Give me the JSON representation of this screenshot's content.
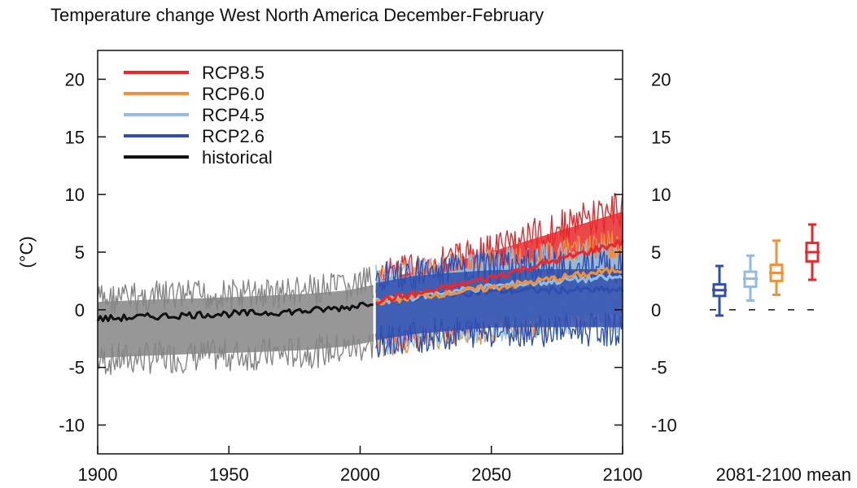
{
  "chart_data": {
    "type": "line",
    "title": "Temperature change West North America December-February",
    "xlabel": "",
    "ylabel": "(°C)",
    "xlim": [
      1900,
      2100
    ],
    "ylim": [
      -12.5,
      22.5
    ],
    "x_ticks": [
      1900,
      1950,
      2000,
      2050,
      2100
    ],
    "y_ticks": [
      -10,
      -5,
      0,
      5,
      10,
      15,
      20
    ],
    "grid": false,
    "legend_position": "top-left",
    "series": [
      {
        "name": "RCP8.5",
        "color": "#e8282b",
        "years": [
          2006,
          2020,
          2035,
          2050,
          2065,
          2080,
          2100
        ],
        "mean": [
          0.8,
          1.3,
          2.0,
          2.8,
          3.7,
          4.6,
          5.9
        ],
        "spread_low": [
          -4.0,
          -3.4,
          -2.7,
          -2.0,
          -1.2,
          -0.3,
          1.0
        ],
        "spread_high": [
          4.2,
          4.9,
          5.8,
          6.8,
          7.9,
          9.0,
          10.4
        ]
      },
      {
        "name": "RCP6.0",
        "color": "#f0923c",
        "years": [
          2006,
          2020,
          2035,
          2050,
          2065,
          2080,
          2100
        ],
        "mean": [
          0.7,
          1.1,
          1.5,
          1.9,
          2.4,
          2.9,
          3.5
        ],
        "spread_low": [
          -4.2,
          -3.7,
          -3.3,
          -2.9,
          -2.5,
          -2.1,
          -1.6
        ],
        "spread_high": [
          4.0,
          4.4,
          4.9,
          5.3,
          5.8,
          6.3,
          7.0
        ]
      },
      {
        "name": "RCP4.5",
        "color": "#8fbde4",
        "years": [
          2006,
          2020,
          2035,
          2050,
          2065,
          2080,
          2100
        ],
        "mean": [
          0.7,
          1.1,
          1.6,
          2.0,
          2.3,
          2.6,
          2.8
        ],
        "spread_low": [
          -4.1,
          -3.6,
          -3.2,
          -2.8,
          -2.5,
          -2.2,
          -2.0
        ],
        "spread_high": [
          4.1,
          4.6,
          5.0,
          5.4,
          5.7,
          6.0,
          6.2
        ]
      },
      {
        "name": "RCP2.6",
        "color": "#2f4fb0",
        "years": [
          2006,
          2020,
          2035,
          2050,
          2065,
          2080,
          2100
        ],
        "mean": [
          0.7,
          1.1,
          1.4,
          1.6,
          1.7,
          1.7,
          1.7
        ],
        "spread_low": [
          -4.3,
          -3.8,
          -3.5,
          -3.2,
          -3.2,
          -3.2,
          -3.2
        ],
        "spread_high": [
          4.0,
          4.6,
          4.9,
          5.1,
          5.2,
          5.2,
          5.2
        ]
      },
      {
        "name": "historical",
        "color": "#111111",
        "spread_color": "#858585",
        "years": [
          1900,
          1920,
          1940,
          1960,
          1980,
          1995,
          2005
        ],
        "mean": [
          -0.8,
          -0.6,
          -0.4,
          -0.3,
          -0.1,
          0.2,
          0.7
        ],
        "spread_low": [
          -5.8,
          -5.6,
          -5.4,
          -5.3,
          -5.1,
          -4.8,
          -4.4
        ],
        "spread_high": [
          2.3,
          2.5,
          2.6,
          2.8,
          3.0,
          3.3,
          3.8
        ]
      }
    ],
    "boxplots": {
      "label": "2081-2100 mean",
      "items": [
        {
          "name": "RCP2.6",
          "color": "#2f4fb0",
          "whisker_low": -0.5,
          "q1": 1.2,
          "median": 1.7,
          "q3": 2.2,
          "whisker_high": 3.8
        },
        {
          "name": "RCP4.5",
          "color": "#8fbde4",
          "whisker_low": 0.8,
          "q1": 2.0,
          "median": 2.7,
          "q3": 3.3,
          "whisker_high": 4.7
        },
        {
          "name": "RCP6.0",
          "color": "#f0923c",
          "whisker_low": 1.3,
          "q1": 2.5,
          "median": 3.2,
          "q3": 3.9,
          "whisker_high": 6.0
        },
        {
          "name": "RCP8.5",
          "color": "#e8282b",
          "whisker_low": 2.6,
          "q1": 4.2,
          "median": 5.0,
          "q3": 5.8,
          "whisker_high": 7.4
        }
      ]
    }
  }
}
